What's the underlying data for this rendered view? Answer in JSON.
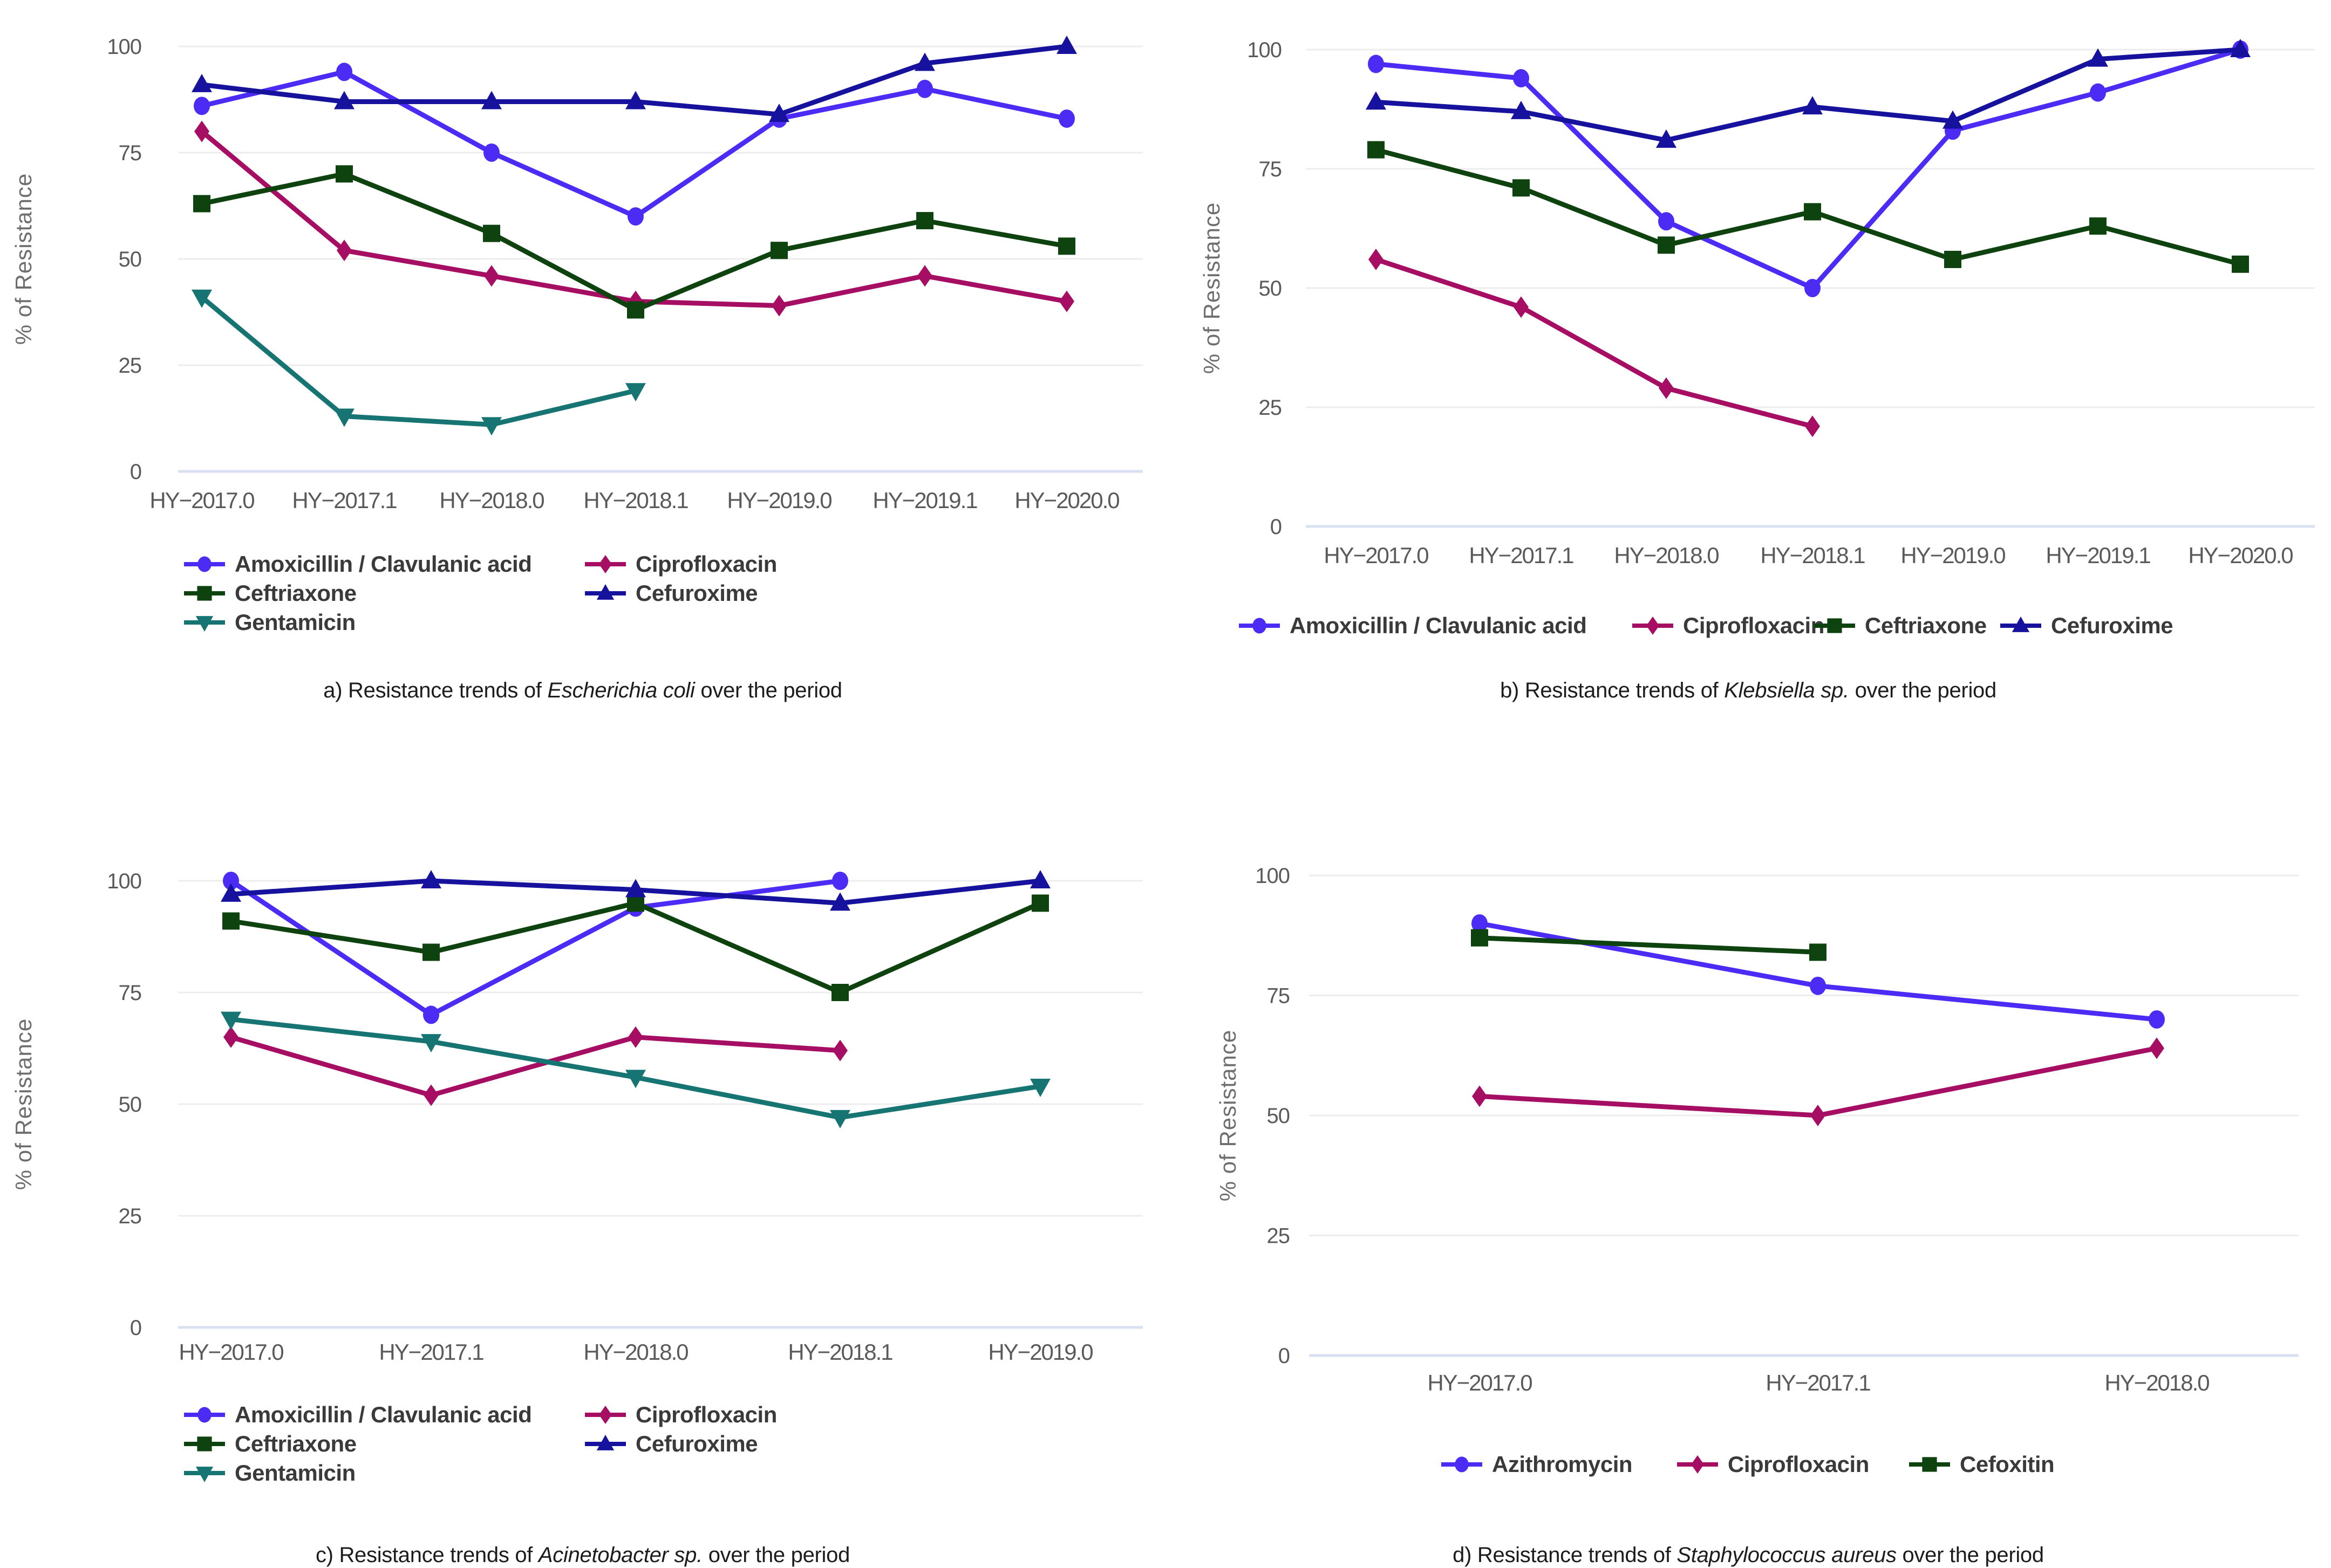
{
  "figure": {
    "background": "#ffffff",
    "ylabel": "% of Resistance",
    "yticks": [
      0,
      25,
      50,
      75,
      100
    ],
    "grid_color": "#ededed",
    "zero_line_color": "#d9e0f2",
    "tick_text_color": "#5a5a5a",
    "axis_title_color": "#6e6e6e",
    "legend_text_color": "#3a3a3a",
    "caption_text_color": "#1c1c1c"
  },
  "chart_data": [
    {
      "type": "line",
      "title": "a) Resistance trends of Escherichia coli over the period",
      "caption": {
        "prefix": "a) Resistance trends of ",
        "species": "Escherichia coli",
        "suffix": " over the period"
      },
      "xlabel": "",
      "ylabel": "% of Resistance",
      "ylim": [
        0,
        100
      ],
      "yticks": [
        0,
        25,
        50,
        75,
        100
      ],
      "grid": "horizontal",
      "legend_position": "bottom",
      "legend_layout": "two-column",
      "categories": [
        "HY−2017.0",
        "HY−2017.1",
        "HY−2018.0",
        "HY−2018.1",
        "HY−2019.0",
        "HY−2019.1",
        "HY−2020.0"
      ],
      "series": [
        {
          "name": "Amoxicillin / Clavulanic acid",
          "color": "#4c2bf5",
          "marker": "circle",
          "values": [
            86,
            94,
            75,
            60,
            83,
            90,
            83
          ]
        },
        {
          "name": "Ciprofloxacin",
          "color": "#a50e62",
          "marker": "diamond",
          "values": [
            80,
            52,
            46,
            40,
            39,
            46,
            40
          ]
        },
        {
          "name": "Ceftriaxone",
          "color": "#0e420e",
          "marker": "square",
          "values": [
            63,
            70,
            56,
            38,
            52,
            59,
            53
          ]
        },
        {
          "name": "Cefuroxime",
          "color": "#16129e",
          "marker": "triangle-up",
          "values": [
            91,
            87,
            87,
            87,
            84,
            96,
            100
          ]
        },
        {
          "name": "Gentamicin",
          "color": "#167472",
          "marker": "triangle-down",
          "values": [
            41,
            13,
            11,
            19,
            null,
            null,
            null
          ]
        }
      ]
    },
    {
      "type": "line",
      "title": "b) Resistance trends of Klebsiella sp. over the period",
      "caption": {
        "prefix": "b) Resistance trends of ",
        "species": "Klebsiella sp.",
        "suffix": " over the period"
      },
      "xlabel": "",
      "ylabel": "% of Resistance",
      "ylim": [
        0,
        100
      ],
      "yticks": [
        0,
        25,
        50,
        75,
        100
      ],
      "grid": "horizontal",
      "legend_position": "bottom",
      "legend_layout": "single-row",
      "categories": [
        "HY−2017.0",
        "HY−2017.1",
        "HY−2018.0",
        "HY−2018.1",
        "HY−2019.0",
        "HY−2019.1",
        "HY−2020.0"
      ],
      "series": [
        {
          "name": "Amoxicillin / Clavulanic acid",
          "color": "#4c2bf5",
          "marker": "circle",
          "values": [
            97,
            94,
            64,
            50,
            83,
            91,
            100
          ]
        },
        {
          "name": "Ciprofloxacin",
          "color": "#a50e62",
          "marker": "diamond",
          "values": [
            56,
            46,
            29,
            21,
            null,
            null,
            null
          ]
        },
        {
          "name": "Ceftriaxone",
          "color": "#0e420e",
          "marker": "square",
          "values": [
            79,
            71,
            59,
            66,
            56,
            63,
            55
          ]
        },
        {
          "name": "Cefuroxime",
          "color": "#16129e",
          "marker": "triangle-up",
          "values": [
            89,
            87,
            81,
            88,
            85,
            98,
            100
          ]
        }
      ]
    },
    {
      "type": "line",
      "title": "c) Resistance trends of Acinetobacter sp. over the period",
      "caption": {
        "prefix": "c) Resistance trends of ",
        "species": "Acinetobacter sp.",
        "suffix": " over the period"
      },
      "xlabel": "",
      "ylabel": "% of Resistance",
      "ylim": [
        0,
        100
      ],
      "yticks": [
        0,
        25,
        50,
        75,
        100
      ],
      "grid": "horizontal",
      "legend_position": "bottom",
      "legend_layout": "two-column",
      "categories": [
        "HY−2017.0",
        "HY−2017.1",
        "HY−2018.0",
        "HY−2018.1",
        "HY−2019.0"
      ],
      "series": [
        {
          "name": "Amoxicillin / Clavulanic acid",
          "color": "#4c2bf5",
          "marker": "circle",
          "values": [
            100,
            70,
            94,
            100,
            null
          ]
        },
        {
          "name": "Ciprofloxacin",
          "color": "#a50e62",
          "marker": "diamond",
          "values": [
            65,
            52,
            65,
            62,
            null
          ]
        },
        {
          "name": "Ceftriaxone",
          "color": "#0e420e",
          "marker": "square",
          "values": [
            91,
            84,
            95,
            75,
            95
          ]
        },
        {
          "name": "Cefuroxime",
          "color": "#16129e",
          "marker": "triangle-up",
          "values": [
            97,
            100,
            98,
            95,
            100
          ]
        },
        {
          "name": "Gentamicin",
          "color": "#167472",
          "marker": "triangle-down",
          "values": [
            69,
            64,
            56,
            47,
            54
          ]
        }
      ]
    },
    {
      "type": "line",
      "title": "d) Resistance trends of Staphylococcus aureus over the period",
      "caption": {
        "prefix": "d) Resistance trends of ",
        "species": "Staphylococcus aureus",
        "suffix": " over the period"
      },
      "xlabel": "",
      "ylabel": "% of Resistance",
      "ylim": [
        0,
        100
      ],
      "yticks": [
        0,
        25,
        50,
        75,
        100
      ],
      "grid": "horizontal",
      "legend_position": "bottom",
      "legend_layout": "single-row",
      "categories": [
        "HY−2017.0",
        "HY−2017.1",
        "HY−2018.0"
      ],
      "series": [
        {
          "name": "Azithromycin",
          "color": "#4c2bf5",
          "marker": "circle",
          "values": [
            90,
            77,
            70
          ]
        },
        {
          "name": "Ciprofloxacin",
          "color": "#a50e62",
          "marker": "diamond",
          "values": [
            54,
            50,
            64
          ]
        },
        {
          "name": "Cefoxitin",
          "color": "#0e420e",
          "marker": "square",
          "values": [
            87,
            84,
            null
          ]
        }
      ]
    }
  ]
}
